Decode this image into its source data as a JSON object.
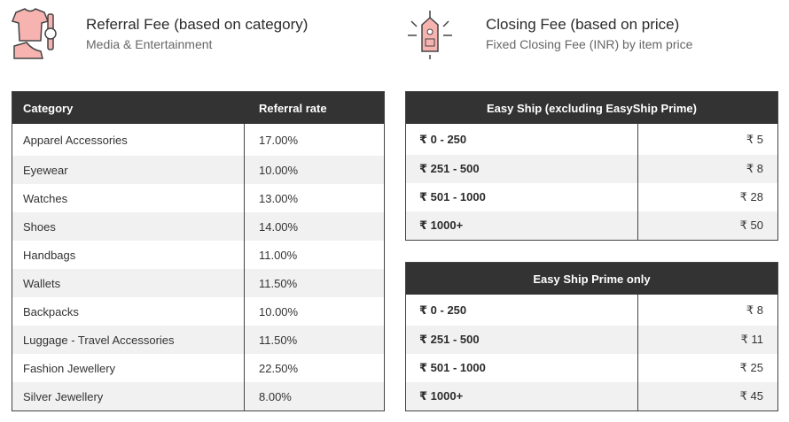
{
  "referral": {
    "title": "Referral Fee (based on category)",
    "subtitle": "Media & Entertainment",
    "table": {
      "header": [
        "Category",
        "Referral rate"
      ],
      "rows": [
        [
          "Apparel Accessories",
          "17.00%"
        ],
        [
          "Eyewear",
          "10.00%"
        ],
        [
          "Watches",
          "13.00%"
        ],
        [
          "Shoes",
          "14.00%"
        ],
        [
          "Handbags",
          "11.00%"
        ],
        [
          "Wallets",
          "11.50%"
        ],
        [
          "Backpacks",
          "10.00%"
        ],
        [
          "Luggage - Travel Accessories",
          "11.50%"
        ],
        [
          "Fashion Jewellery",
          "22.50%"
        ],
        [
          "Silver Jewellery",
          "8.00%"
        ]
      ]
    }
  },
  "closing": {
    "title": "Closing Fee (based on price)",
    "subtitle": "Fixed Closing Fee (INR) by item price",
    "tables": [
      {
        "header": "Easy Ship (excluding EasyShip Prime)",
        "rows": [
          [
            "₹ 0 - 250",
            "₹ 5"
          ],
          [
            "₹ 251 - 500",
            "₹ 8"
          ],
          [
            "₹ 501 - 1000",
            "₹ 28"
          ],
          [
            "₹ 1000+",
            "₹ 50"
          ]
        ]
      },
      {
        "header": "Easy Ship Prime only",
        "rows": [
          [
            "₹ 0 - 250",
            "₹ 8"
          ],
          [
            "₹ 251 - 500",
            "₹ 11"
          ],
          [
            "₹ 501 - 1000",
            "₹ 25"
          ],
          [
            "₹ 1000+",
            "₹ 45"
          ]
        ]
      }
    ]
  }
}
